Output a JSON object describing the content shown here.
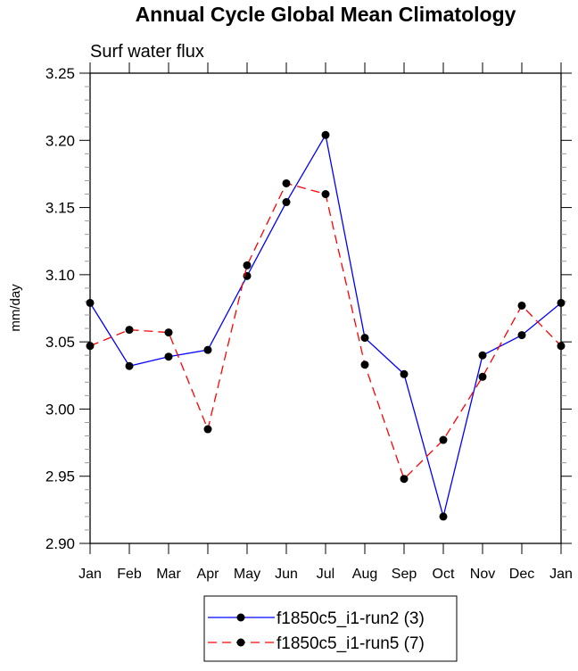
{
  "chart_data": {
    "type": "line",
    "title": "Annual Cycle Global Mean Climatology",
    "subtitle": "Surf water flux",
    "xlabel": "",
    "ylabel": "mm/day",
    "categories": [
      "Jan",
      "Feb",
      "Mar",
      "Apr",
      "May",
      "Jun",
      "Jul",
      "Aug",
      "Sep",
      "Oct",
      "Nov",
      "Dec",
      "Jan"
    ],
    "ylim": [
      2.9,
      3.25
    ],
    "yticks": [
      "2.90",
      "2.95",
      "3.00",
      "3.05",
      "3.10",
      "3.15",
      "3.20",
      "3.25"
    ],
    "grid": false,
    "legend_placement": "bottom-center",
    "series": [
      {
        "name": "f1850c5_i1-run2 (3)",
        "color": "#0000ff",
        "dash": "solid",
        "values": [
          3.079,
          3.032,
          3.039,
          3.044,
          3.099,
          3.154,
          3.204,
          3.053,
          3.026,
          2.92,
          3.04,
          3.055,
          3.079
        ]
      },
      {
        "name": "f1850c5_i1-run5 (7)",
        "color": "#ff0000",
        "dash": "dashed",
        "values": [
          3.047,
          3.059,
          3.057,
          2.985,
          3.107,
          3.168,
          3.16,
          3.033,
          2.948,
          2.977,
          3.024,
          3.077,
          3.047
        ]
      }
    ]
  }
}
